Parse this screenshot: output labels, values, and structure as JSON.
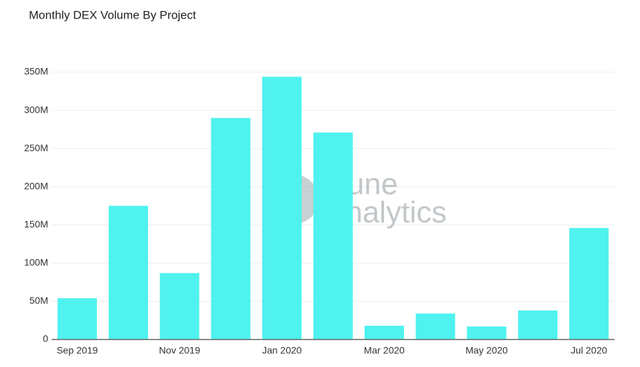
{
  "chart_data": {
    "type": "bar",
    "title": "Monthly DEX Volume By Project",
    "watermark": [
      "Dune",
      "Analytics"
    ],
    "categories": [
      "Sep 2019",
      null,
      "Nov 2019",
      null,
      "Jan 2020",
      null,
      "Mar 2020",
      null,
      "May 2020",
      null,
      "Jul 2020"
    ],
    "values": [
      54000000,
      175000000,
      87000000,
      290000000,
      344000000,
      271000000,
      18000000,
      34000000,
      17000000,
      38000000,
      146000000
    ],
    "color": "#4ff2ee",
    "ylim": [
      0,
      350000000
    ],
    "yticks": [
      0,
      {
        "value": 50000000,
        "label": "50M"
      },
      {
        "value": 100000000,
        "label": "100M"
      },
      {
        "value": 150000000,
        "label": "150M"
      },
      {
        "value": 200000000,
        "label": "200M"
      },
      {
        "value": 250000000,
        "label": "250M"
      },
      {
        "value": 300000000,
        "label": "300M"
      },
      {
        "value": 350000000,
        "label": "350M"
      }
    ],
    "grid": true
  }
}
